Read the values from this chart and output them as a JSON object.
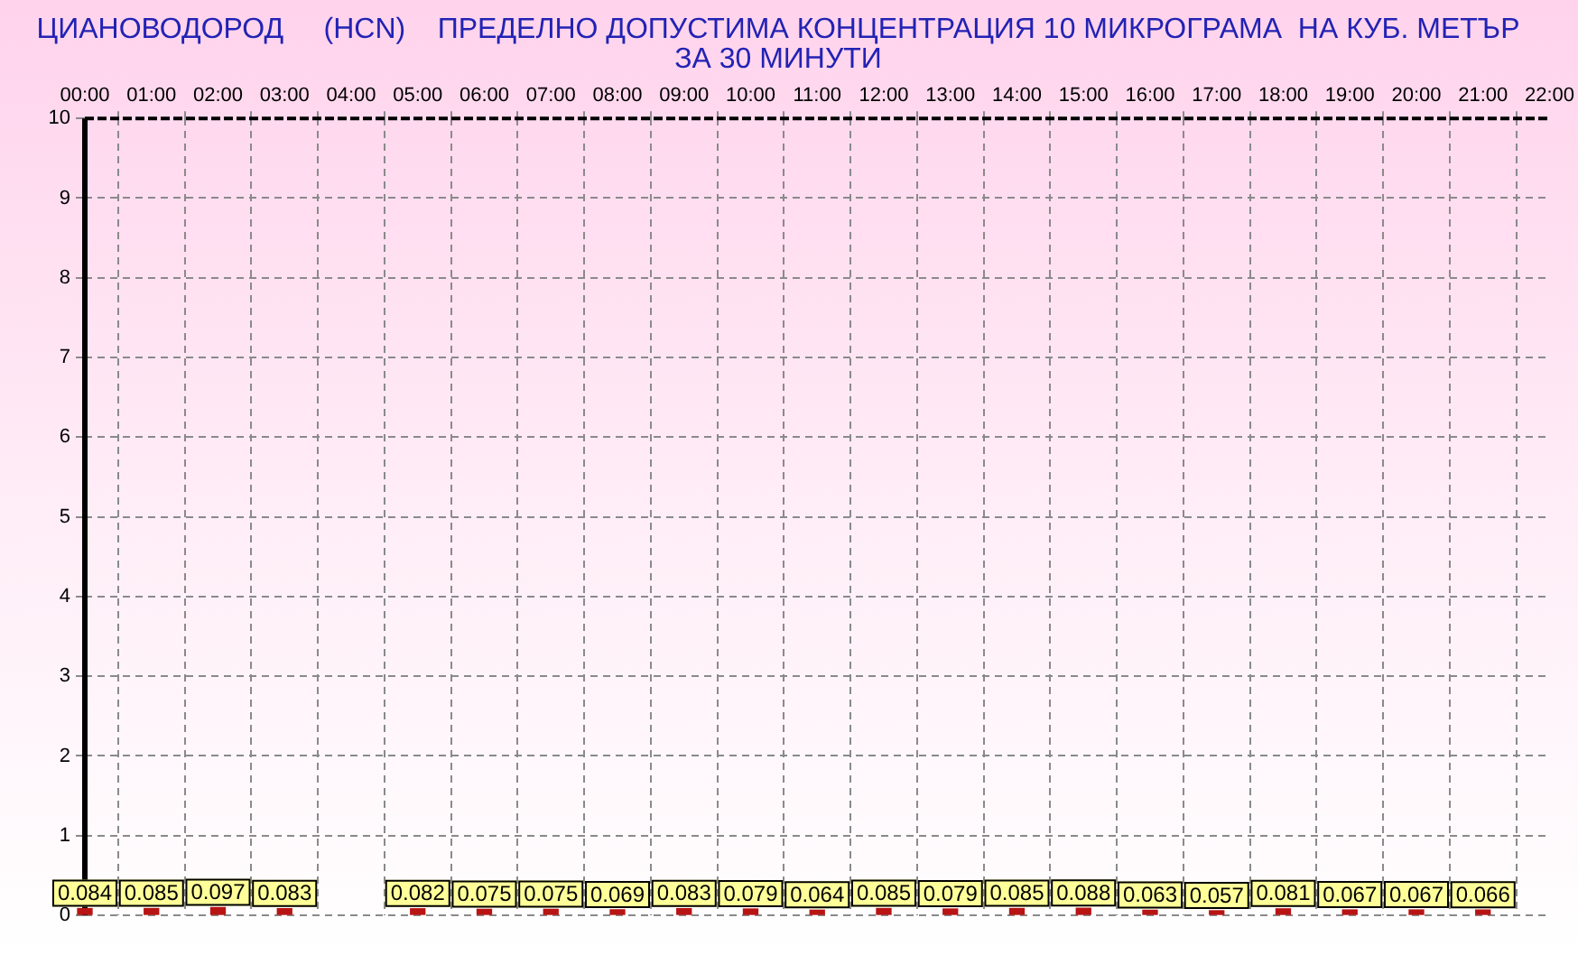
{
  "chart_data": {
    "type": "bar",
    "title": "ЦИАНОВОДОРОД     (HCN)    ПРЕДЕЛНО ДОПУСТИМА КОНЦЕНТРАЦИЯ 10 МИКРОГРАМА  НА КУБ. МЕТЪР\nЗА 30 МИНУТИ",
    "categories": [
      "00:00",
      "01:00",
      "02:00",
      "03:00",
      "04:00",
      "05:00",
      "06:00",
      "07:00",
      "08:00",
      "09:00",
      "10:00",
      "11:00",
      "12:00",
      "13:00",
      "14:00",
      "15:00",
      "16:00",
      "17:00",
      "18:00",
      "19:00",
      "20:00",
      "21:00",
      "22:00"
    ],
    "values": [
      0.084,
      0.085,
      0.097,
      0.083,
      null,
      0.082,
      0.075,
      0.075,
      0.069,
      0.083,
      0.079,
      0.064,
      0.085,
      0.079,
      0.085,
      0.088,
      0.063,
      0.057,
      0.081,
      0.067,
      0.067,
      0.066,
      null
    ],
    "color": "#b81414",
    "ylim": [
      0,
      10
    ],
    "yticks": [
      0,
      1,
      2,
      3,
      4,
      5,
      6,
      7,
      8,
      9,
      10
    ],
    "grid": true,
    "data_labels": true
  }
}
